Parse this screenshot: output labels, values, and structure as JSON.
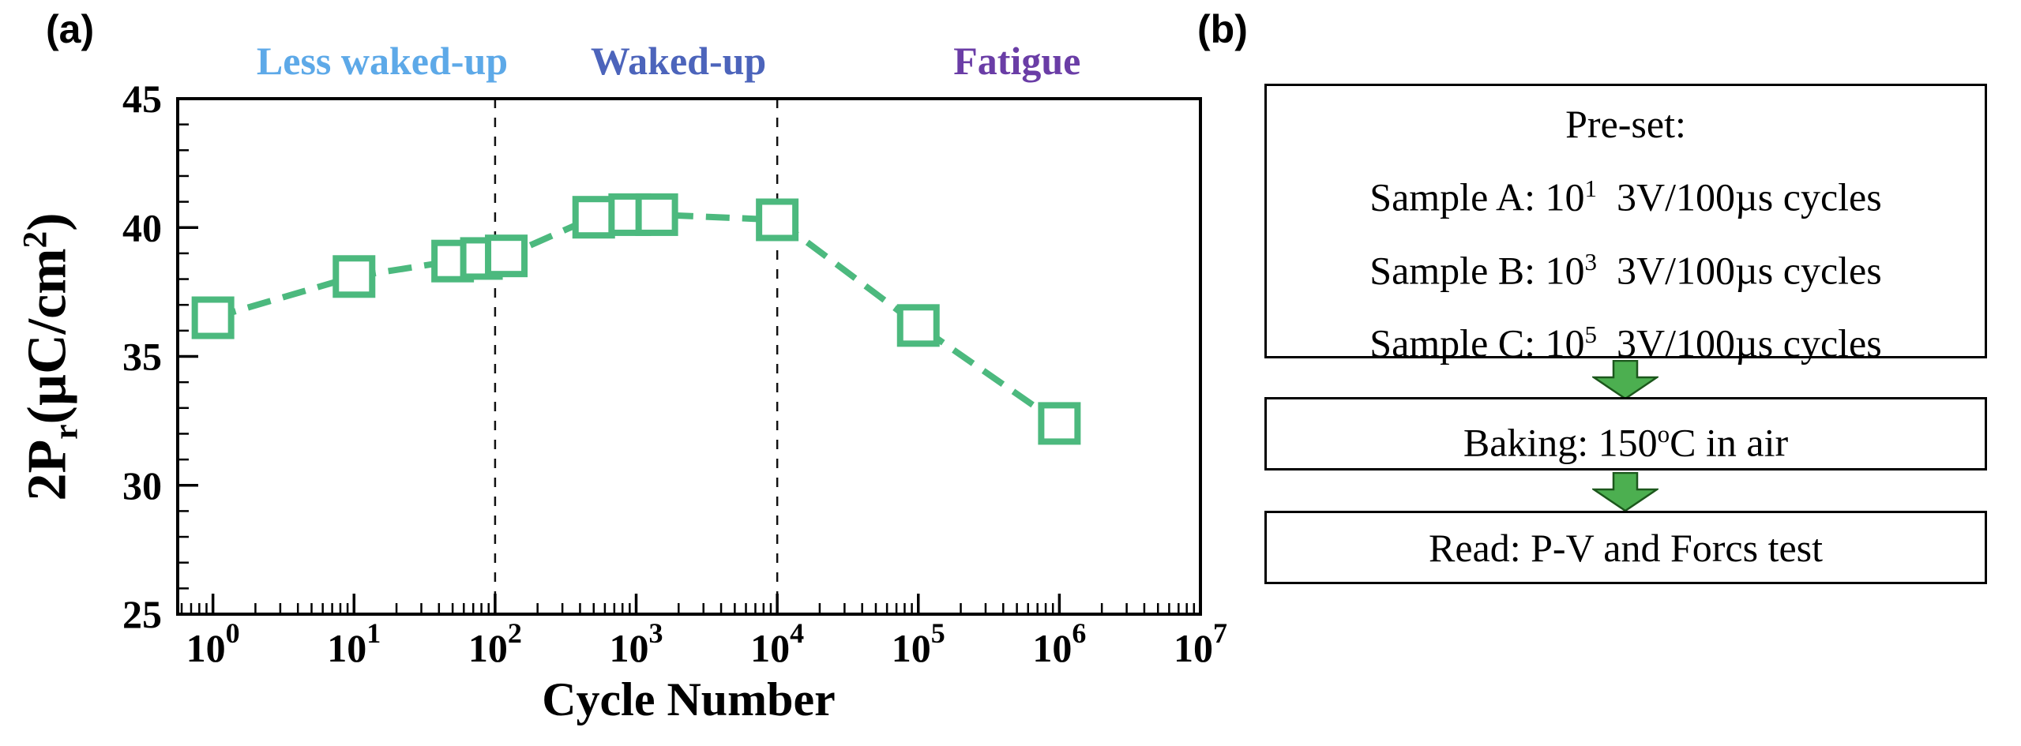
{
  "panels": {
    "a_label": "(a)",
    "b_label": "(b)"
  },
  "chart_data": {
    "type": "scatter",
    "xlabel": "Cycle Number",
    "ylabel": "2Pr(µC/cm²)",
    "ylabel_parts": {
      "pre": "2P",
      "sub": "r",
      "mid": "(µC/cm",
      "sup": "2",
      "post": ")"
    },
    "xscale": "log",
    "x_decades_range": [
      -0.25,
      7
    ],
    "xtick_exponents": [
      0,
      1,
      2,
      3,
      4,
      5,
      6,
      7
    ],
    "ylim": [
      25,
      45
    ],
    "yticks": [
      25,
      30,
      35,
      40,
      45
    ],
    "x": [
      1,
      10,
      50,
      80,
      120,
      500,
      900,
      1400,
      10000,
      100000,
      1000000
    ],
    "y": [
      36.5,
      38.1,
      38.7,
      38.8,
      38.9,
      40.4,
      40.5,
      40.5,
      40.3,
      36.2,
      32.4
    ],
    "series_color": "#4cb97e",
    "marker": "open-square",
    "line_style": "dashed",
    "grid": false,
    "vline_decades": [
      2,
      4
    ],
    "regions": [
      {
        "label": "Less waked-up",
        "color": "#5da9e8",
        "center_decade": 1.2
      },
      {
        "label": "Waked-up",
        "color": "#4c64bb",
        "center_decade": 3.3
      },
      {
        "label": "Fatigue",
        "color": "#6a3da6",
        "center_decade": 5.7
      }
    ]
  },
  "flowchart": {
    "preset": {
      "title": "Pre-set:",
      "rows": [
        {
          "pre": "Sample A: 10",
          "sup": "1",
          "post": "  3V/100µs cycles"
        },
        {
          "pre": "Sample B: 10",
          "sup": "3",
          "post": "  3V/100µs cycles"
        },
        {
          "pre": "Sample C: 10",
          "sup": "5",
          "post": "  3V/100µs cycles"
        }
      ]
    },
    "baking": {
      "pre": "Baking: 150",
      "sup": "o",
      "post": "C in air"
    },
    "read": {
      "text": "Read: P-V and Forcs test"
    },
    "arrow_color": "#4caf50"
  }
}
